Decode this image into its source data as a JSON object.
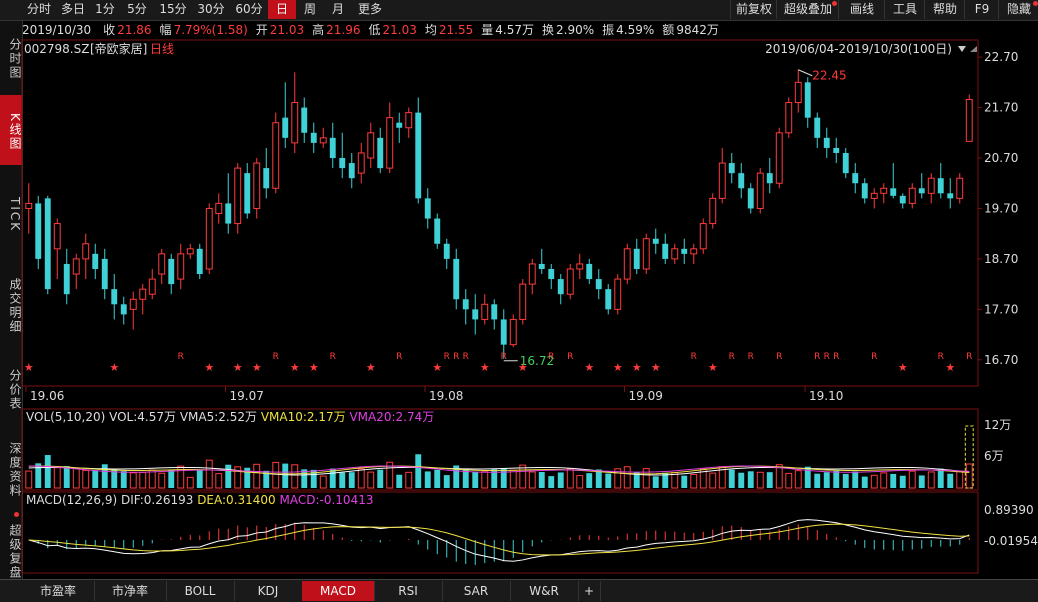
{
  "top_tabs": [
    "分时",
    "多日",
    "1分",
    "5分",
    "15分",
    "30分",
    "60分",
    "日",
    "周",
    "月",
    "更多"
  ],
  "active_tab": "日",
  "toolbar": [
    "前复权",
    "超级叠加",
    "画线",
    "工具",
    "帮助",
    "F9",
    "隐藏"
  ],
  "info": {
    "date": "2019/10/30",
    "close_label": "收",
    "close": "21.86",
    "range_label": "幅",
    "range": "7.79%(1.58)",
    "open_label": "开",
    "open": "21.03",
    "high_label": "高",
    "high": "21.96",
    "low_label": "低",
    "low": "21.03",
    "avg_label": "均",
    "avg": "21.55",
    "vol_label": "量",
    "vol": "4.57万",
    "turn_label": "换",
    "turn": "2.90%",
    "amp_label": "振",
    "amp": "4.59%",
    "amt_label": "额",
    "amt": "9842万"
  },
  "left_tabs": [
    "分时图",
    "K线图",
    "TICK",
    "成交明细",
    "分价表",
    "深度资料",
    "超级复盘"
  ],
  "stock": {
    "code": "002798.SZ",
    "name": "[帝欧家居]",
    "period": "日线",
    "range": "2019/06/04-2019/10/30(100日)"
  },
  "price_axis": [
    "22.70",
    "21.70",
    "20.70",
    "19.70",
    "18.70",
    "17.70",
    "16.70"
  ],
  "date_axis": [
    "19.06",
    "19.07",
    "19.08",
    "19.09",
    "19.10"
  ],
  "annotations": {
    "max": "22.45",
    "min": "16.72"
  },
  "vol_panel": {
    "title": "VOL(5,10,20)",
    "vol": "VOL:4.57万",
    "vma5": "VMA5:2.52万",
    "vma10": "VMA10:2.17万",
    "vma20": "VMA20:2.74万",
    "axis": [
      "12万",
      "6万"
    ]
  },
  "macd_panel": {
    "title": "MACD(12,26,9)",
    "dif": "DIF:0.26193",
    "dea": "DEA:0.31400",
    "macd": "MACD:-0.10413",
    "axis": [
      "0.89390",
      "-0.01954"
    ]
  },
  "bottom_tabs": [
    "市盈率",
    "市净率",
    "BOLL",
    "KDJ",
    "MACD",
    "RSI",
    "SAR",
    "W&R",
    "+"
  ],
  "active_bottom": "MACD",
  "colors": {
    "up": "#ff3b3b",
    "down": "#3fd1d6",
    "accent": "#c0111a",
    "yellow": "#f0e040",
    "magenta": "#e040e0",
    "white": "#ffffff"
  },
  "chart_data": {
    "type": "candlestick",
    "price_ylim": [
      16.2,
      23.0
    ],
    "candles": [
      [
        19.7,
        20.2,
        19.2,
        19.8
      ],
      [
        19.8,
        19.95,
        18.5,
        18.7
      ],
      [
        19.9,
        19.95,
        18.0,
        18.1
      ],
      [
        18.9,
        19.5,
        18.3,
        19.4
      ],
      [
        18.6,
        18.9,
        17.8,
        18.0
      ],
      [
        18.4,
        18.8,
        18.1,
        18.7
      ],
      [
        18.7,
        19.2,
        18.3,
        19.0
      ],
      [
        18.8,
        19.0,
        18.3,
        18.5
      ],
      [
        18.7,
        18.9,
        17.9,
        18.1
      ],
      [
        18.1,
        18.4,
        17.5,
        17.8
      ],
      [
        17.8,
        17.95,
        17.4,
        17.6
      ],
      [
        17.7,
        18.05,
        17.3,
        17.9
      ],
      [
        17.9,
        18.2,
        17.6,
        18.1
      ],
      [
        18.0,
        18.5,
        17.9,
        18.3
      ],
      [
        18.4,
        18.9,
        18.2,
        18.8
      ],
      [
        18.7,
        18.8,
        18.0,
        18.2
      ],
      [
        18.3,
        19.0,
        18.1,
        18.8
      ],
      [
        18.8,
        19.0,
        18.7,
        18.9
      ],
      [
        18.9,
        19.0,
        18.3,
        18.4
      ],
      [
        18.5,
        19.8,
        18.4,
        19.7
      ],
      [
        19.6,
        20.0,
        19.4,
        19.8
      ],
      [
        19.8,
        20.4,
        19.2,
        19.4
      ],
      [
        19.4,
        20.6,
        19.2,
        20.5
      ],
      [
        20.4,
        20.6,
        19.5,
        19.6
      ],
      [
        19.7,
        20.7,
        19.5,
        20.6
      ],
      [
        20.5,
        20.9,
        19.9,
        20.1
      ],
      [
        20.1,
        21.6,
        20.0,
        21.4
      ],
      [
        21.5,
        22.2,
        20.9,
        21.1
      ],
      [
        21.0,
        22.4,
        20.8,
        21.8
      ],
      [
        21.7,
        21.9,
        21.0,
        21.2
      ],
      [
        21.2,
        21.4,
        20.8,
        21.0
      ],
      [
        21.0,
        21.3,
        20.9,
        21.1
      ],
      [
        21.1,
        21.4,
        20.5,
        20.7
      ],
      [
        20.7,
        21.2,
        20.3,
        20.5
      ],
      [
        20.6,
        20.8,
        20.1,
        20.3
      ],
      [
        20.4,
        21.0,
        20.2,
        20.8
      ],
      [
        20.7,
        21.4,
        20.5,
        21.2
      ],
      [
        21.1,
        21.3,
        20.4,
        20.5
      ],
      [
        20.5,
        21.8,
        20.4,
        21.5
      ],
      [
        21.4,
        21.6,
        21.0,
        21.3
      ],
      [
        21.3,
        21.7,
        21.1,
        21.6
      ],
      [
        21.6,
        21.9,
        19.8,
        19.9
      ],
      [
        19.9,
        20.1,
        19.3,
        19.5
      ],
      [
        19.5,
        19.6,
        18.9,
        19.0
      ],
      [
        19.0,
        19.1,
        18.5,
        18.7
      ],
      [
        18.7,
        18.9,
        17.7,
        17.9
      ],
      [
        17.9,
        18.1,
        17.4,
        17.7
      ],
      [
        17.7,
        18.0,
        17.2,
        17.5
      ],
      [
        17.5,
        18.0,
        17.4,
        17.8
      ],
      [
        17.8,
        17.9,
        17.3,
        17.5
      ],
      [
        17.5,
        17.7,
        16.72,
        17.0
      ],
      [
        17.0,
        17.6,
        16.95,
        17.5
      ],
      [
        17.5,
        18.3,
        17.4,
        18.2
      ],
      [
        18.2,
        18.7,
        18.0,
        18.6
      ],
      [
        18.6,
        18.9,
        18.4,
        18.5
      ],
      [
        18.5,
        18.6,
        18.1,
        18.3
      ],
      [
        18.3,
        18.4,
        17.8,
        18.0
      ],
      [
        18.0,
        18.6,
        17.9,
        18.5
      ],
      [
        18.5,
        18.8,
        18.3,
        18.6
      ],
      [
        18.6,
        18.7,
        18.2,
        18.3
      ],
      [
        18.3,
        18.5,
        17.9,
        18.1
      ],
      [
        18.1,
        18.2,
        17.6,
        17.7
      ],
      [
        17.7,
        18.4,
        17.6,
        18.3
      ],
      [
        18.3,
        19.0,
        18.2,
        18.9
      ],
      [
        18.9,
        19.1,
        18.4,
        18.5
      ],
      [
        18.5,
        19.2,
        18.4,
        19.1
      ],
      [
        19.1,
        19.3,
        18.8,
        19.0
      ],
      [
        19.0,
        19.2,
        18.6,
        18.7
      ],
      [
        18.7,
        19.0,
        18.6,
        18.9
      ],
      [
        18.9,
        19.1,
        18.6,
        18.8
      ],
      [
        18.8,
        19.0,
        18.6,
        18.9
      ],
      [
        18.9,
        19.5,
        18.8,
        19.4
      ],
      [
        19.4,
        20.0,
        19.3,
        19.9
      ],
      [
        19.9,
        20.9,
        19.8,
        20.6
      ],
      [
        20.6,
        20.8,
        20.2,
        20.4
      ],
      [
        20.4,
        20.6,
        19.9,
        20.1
      ],
      [
        20.1,
        20.2,
        19.6,
        19.7
      ],
      [
        19.7,
        20.5,
        19.6,
        20.4
      ],
      [
        20.4,
        20.7,
        20.0,
        20.2
      ],
      [
        20.2,
        21.3,
        20.1,
        21.2
      ],
      [
        21.2,
        21.9,
        21.1,
        21.8
      ],
      [
        21.8,
        22.45,
        21.6,
        22.2
      ],
      [
        22.2,
        22.3,
        21.3,
        21.5
      ],
      [
        21.5,
        21.6,
        20.9,
        21.1
      ],
      [
        21.1,
        21.3,
        20.7,
        20.9
      ],
      [
        20.9,
        21.1,
        20.6,
        20.8
      ],
      [
        20.8,
        20.9,
        20.3,
        20.4
      ],
      [
        20.4,
        20.6,
        20.0,
        20.2
      ],
      [
        20.2,
        20.3,
        19.8,
        19.9
      ],
      [
        19.9,
        20.1,
        19.7,
        20.0
      ],
      [
        20.0,
        20.2,
        19.8,
        20.1
      ],
      [
        20.1,
        20.6,
        19.9,
        19.95
      ],
      [
        19.95,
        20.0,
        19.7,
        19.8
      ],
      [
        19.8,
        20.2,
        19.7,
        20.1
      ],
      [
        20.1,
        20.4,
        19.9,
        20.0
      ],
      [
        20.0,
        20.4,
        19.8,
        20.3
      ],
      [
        20.3,
        20.6,
        19.9,
        20.0
      ],
      [
        20.0,
        20.3,
        19.7,
        19.9
      ],
      [
        19.9,
        20.4,
        19.8,
        20.3
      ],
      [
        21.03,
        21.96,
        21.03,
        21.86
      ]
    ]
  }
}
